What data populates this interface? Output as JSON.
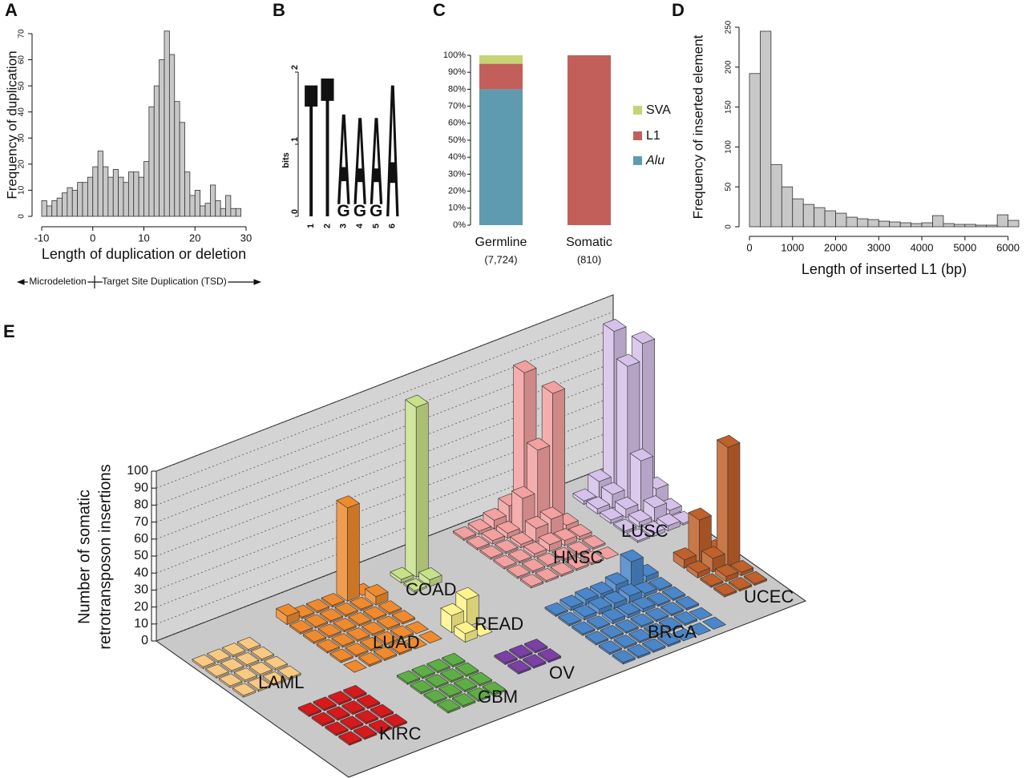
{
  "chart_data": [
    {
      "type": "histogram",
      "panel": "A",
      "x_label": "Length of duplication or deletion",
      "y_label": "Frequency of duplication",
      "annotations": [
        "Microdeletion",
        "Target Site Duplication (TSD)"
      ],
      "bins": [
        -10,
        -9,
        -8,
        -7,
        -6,
        -5,
        -4,
        -3,
        -2,
        -1,
        0,
        1,
        2,
        3,
        4,
        5,
        6,
        7,
        8,
        9,
        10,
        11,
        12,
        13,
        14,
        15,
        16,
        17,
        18,
        19,
        20,
        21,
        22,
        23,
        24,
        25,
        26,
        27,
        28,
        29
      ],
      "values": [
        6,
        4,
        6,
        7,
        9,
        11,
        10,
        13,
        13,
        15,
        19,
        25,
        19,
        15,
        18,
        15,
        13,
        17,
        17,
        15,
        21,
        42,
        50,
        60,
        71,
        62,
        44,
        36,
        17,
        8,
        10,
        4,
        5,
        12,
        6,
        3,
        8,
        3,
        3
      ],
      "color": "#c8c8c8",
      "xlim": [
        -10,
        30
      ],
      "xticks": [
        -10,
        0,
        10,
        20,
        30
      ],
      "ylim": [
        0,
        70
      ],
      "yticks": [
        0,
        10,
        20,
        30,
        40,
        50,
        60,
        70
      ]
    },
    {
      "type": "logo",
      "panel": "B",
      "y_label": "bits",
      "categories": [
        "1",
        "2",
        "3",
        "4",
        "5",
        "6"
      ],
      "series": [
        {
          "name": "G",
          "color": "#f0a800",
          "values": [
            0,
            0,
            0.17,
            0.17,
            0.17,
            0
          ]
        },
        {
          "name": "A",
          "color": "#c0191e",
          "values": [
            0,
            0,
            1.3,
            1.25,
            1.25,
            1.9
          ]
        },
        {
          "name": "T",
          "color": "#3f8a34",
          "values": [
            1.9,
            2.0,
            0,
            0,
            0,
            0
          ]
        }
      ],
      "ylim": [
        0,
        2
      ],
      "yticks": [
        0,
        1,
        2
      ]
    },
    {
      "type": "stacked_bar",
      "panel": "C",
      "categories": [
        "Germline",
        "Somatic"
      ],
      "category_notes": [
        "(7,724)",
        "(810)"
      ],
      "series": [
        {
          "name": "Alu",
          "color": "#5e9bb0",
          "values": [
            80,
            0
          ],
          "font_style": "italic"
        },
        {
          "name": "L1",
          "color": "#c25f5b",
          "values": [
            15,
            100
          ]
        },
        {
          "name": "SVA",
          "color": "#c6d473",
          "values": [
            5,
            0
          ]
        }
      ],
      "ylim": [
        0,
        100
      ],
      "yticks": [
        {
          "value": 0,
          "label": "0%"
        },
        {
          "value": 10,
          "label": "10%"
        },
        {
          "value": 20,
          "label": "20%"
        },
        {
          "value": 30,
          "label": "30%"
        },
        {
          "value": 40,
          "label": "40%"
        },
        {
          "value": 50,
          "label": "50%"
        },
        {
          "value": 60,
          "label": "60%"
        },
        {
          "value": 70,
          "label": "70%"
        },
        {
          "value": 80,
          "label": "80%"
        },
        {
          "value": 90,
          "label": "90%"
        },
        {
          "value": 100,
          "label": "100%"
        }
      ]
    },
    {
      "type": "histogram",
      "panel": "D",
      "x_label": "Length of inserted L1 (bp)",
      "y_label": "Frequency of inserted element",
      "bins": [
        0,
        250,
        500,
        750,
        1000,
        1250,
        1500,
        1750,
        2000,
        2250,
        2500,
        2750,
        3000,
        3250,
        3500,
        3750,
        4000,
        4250,
        4500,
        4750,
        5000,
        5250,
        5500,
        5750,
        6000,
        6250
      ],
      "values": [
        192,
        245,
        78,
        50,
        35,
        28,
        24,
        20,
        17,
        12,
        10,
        9,
        7,
        6,
        5,
        4,
        5,
        14,
        4,
        3,
        3,
        2,
        2,
        15,
        8
      ],
      "color": "#c8c8c8",
      "xlim": [
        0,
        6250
      ],
      "xticks": [
        0,
        1000,
        2000,
        3000,
        4000,
        5000,
        6000
      ],
      "ylim": [
        0,
        250
      ],
      "yticks": [
        0,
        50,
        100,
        150,
        200,
        250
      ]
    },
    {
      "type": "bar3d",
      "panel": "E",
      "y_label_lines": [
        "Number of somatic",
        "retrotransposon insertions"
      ],
      "ylim": [
        0,
        100
      ],
      "yticks": [
        0,
        10,
        20,
        30,
        40,
        50,
        60,
        70,
        80,
        90,
        100
      ],
      "groups": [
        {
          "name": "LAML",
          "color": "#f8c983",
          "label_color": "#b07a3a",
          "values": [
            [
              1,
              1,
              1,
              1
            ],
            [
              1,
              1,
              1,
              1
            ],
            [
              1,
              1,
              1,
              1
            ],
            [
              1,
              1,
              1,
              1
            ]
          ]
        },
        {
          "name": "KIRC",
          "color": "#d7191c",
          "label_color": "#a81010",
          "values": [
            [
              1,
              1,
              1,
              1
            ],
            [
              1,
              1,
              1,
              1
            ],
            [
              1,
              1,
              1,
              1
            ],
            [
              1,
              1,
              1,
              1
            ]
          ]
        },
        {
          "name": "LUAD",
          "color": "#ef8a2e",
          "label_color": "#c05a10",
          "values": [
            [
              5,
              1,
              1,
              1,
              55,
              0
            ],
            [
              1,
              1,
              1,
              1,
              1,
              5
            ],
            [
              1,
              1,
              1,
              1,
              1,
              1
            ],
            [
              1,
              1,
              1,
              1,
              1,
              1
            ],
            [
              1,
              1,
              1,
              1,
              1,
              0
            ],
            [
              0,
              1,
              1,
              1,
              0,
              0
            ]
          ]
        },
        {
          "name": "GBM",
          "color": "#5fae45",
          "label_color": "#3a7a2a",
          "values": [
            [
              1,
              1,
              1,
              1
            ],
            [
              1,
              1,
              1,
              1
            ],
            [
              1,
              1,
              1,
              1
            ],
            [
              1,
              1,
              1,
              1
            ]
          ]
        },
        {
          "name": "COAD",
          "color": "#c9e08a",
          "label_color": "#a3ab6a",
          "values": [
            [
              2,
              100
            ],
            [
              1,
              4
            ]
          ]
        },
        {
          "name": "READ",
          "color": "#fff38c",
          "label_color": "#c4bc80",
          "values": [
            [
              10,
              16
            ],
            [
              5,
              0
            ]
          ]
        },
        {
          "name": "OV",
          "color": "#7b3fa6",
          "label_color": "#5a2a80",
          "values": [
            [
              1,
              1,
              1
            ],
            [
              1,
              1,
              1
            ]
          ]
        },
        {
          "name": "HNSC",
          "color": "#f2a0a0",
          "label_color": "#b06060",
          "values": [
            [
              1,
              2,
              5,
              10,
              85,
              2
            ],
            [
              1,
              2,
              3,
              20,
              45,
              75
            ],
            [
              1,
              1,
              2,
              8,
              10,
              3
            ],
            [
              1,
              1,
              2,
              4,
              3,
              2
            ],
            [
              1,
              1,
              1,
              1,
              1,
              1
            ],
            [
              1,
              1,
              1,
              1,
              1,
              0
            ]
          ]
        },
        {
          "name": "LUSC",
          "color": "#d6c1ea",
          "label_color": "#a48ec0",
          "values": [
            [
              2,
              10,
              95,
              0
            ],
            [
              3,
              8,
              80,
              90
            ],
            [
              2,
              5,
              30,
              10
            ],
            [
              1,
              3,
              8,
              3
            ],
            [
              1,
              2,
              3,
              1
            ]
          ]
        },
        {
          "name": "BRCA",
          "color": "#4a86c9",
          "label_color": "#2a5a9a",
          "values": [
            [
              1,
              2,
              3,
              3,
              5,
              15,
              3
            ],
            [
              1,
              2,
              3,
              3,
              4,
              2,
              1
            ],
            [
              1,
              1,
              2,
              2,
              2,
              1,
              1
            ],
            [
              1,
              1,
              1,
              1,
              1,
              1,
              1
            ],
            [
              1,
              1,
              1,
              1,
              1,
              1,
              0
            ],
            [
              1,
              1,
              1,
              1,
              0,
              0,
              0
            ]
          ]
        },
        {
          "name": "UCEC",
          "color": "#c0602a",
          "label_color": "#a04a18",
          "values": [
            [
              5,
              25,
              3
            ],
            [
              3,
              8,
              70
            ],
            [
              1,
              3,
              2
            ],
            [
              1,
              1,
              1
            ]
          ]
        }
      ]
    }
  ]
}
